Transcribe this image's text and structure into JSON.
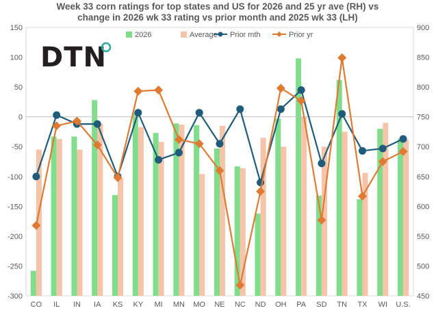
{
  "chart_data": {
    "type": "bar",
    "title_line1": "Week 33 corn ratings for top states and US for 2026 and 25 yr ave (RH) vs",
    "title_line2": "change in 2026 wk 33 rating vs prior month and  2025 wk 33 (LH)",
    "logo": "DTN",
    "categories": [
      "CO",
      "IL",
      "IN",
      "IA",
      "KS",
      "KY",
      "MI",
      "MN",
      "MO",
      "NE",
      "NC",
      "ND",
      "OH",
      "PA",
      "SD",
      "TN",
      "TX",
      "WI",
      "U.S."
    ],
    "y_left": {
      "min": -300,
      "max": 150,
      "ticks": [
        -300,
        -250,
        -200,
        -150,
        -100,
        -50,
        0,
        50,
        100,
        150
      ]
    },
    "y_right": {
      "min": 450,
      "max": 900,
      "ticks": [
        450,
        500,
        550,
        600,
        650,
        700,
        750,
        800,
        850,
        900
      ]
    },
    "grid": false,
    "legend_position": "top",
    "series": [
      {
        "name": "2026",
        "axis": "right",
        "kind": "bar",
        "color": "#7fdd8c",
        "values": [
          492,
          717,
          717,
          778,
          619,
          757,
          723,
          739,
          736,
          697,
          667,
          588,
          747,
          848,
          618,
          812,
          612,
          730,
          713
        ]
      },
      {
        "name": "Average",
        "axis": "right",
        "kind": "bar",
        "color": "#f5c4a9",
        "values": [
          695,
          713,
          695,
          739,
          647,
          733,
          708,
          737,
          654,
          735,
          664,
          715,
          700,
          750,
          700,
          725,
          656,
          740,
          712
        ]
      },
      {
        "name": "Prior mth",
        "axis": "left",
        "kind": "line",
        "color": "#1f5b7a",
        "values": [
          -100,
          3,
          -12,
          -12,
          -100,
          7,
          -72,
          -60,
          7,
          -45,
          13,
          -110,
          13,
          45,
          -78,
          5,
          -57,
          -53,
          -37
        ]
      },
      {
        "name": "Prior yr",
        "axis": "left",
        "kind": "line",
        "color": "#e07a32",
        "values": [
          -182,
          -15,
          -7,
          -47,
          -102,
          43,
          45,
          -38,
          -45,
          -90,
          -282,
          -125,
          48,
          27,
          -173,
          99,
          -133,
          -75,
          -58
        ]
      }
    ]
  }
}
